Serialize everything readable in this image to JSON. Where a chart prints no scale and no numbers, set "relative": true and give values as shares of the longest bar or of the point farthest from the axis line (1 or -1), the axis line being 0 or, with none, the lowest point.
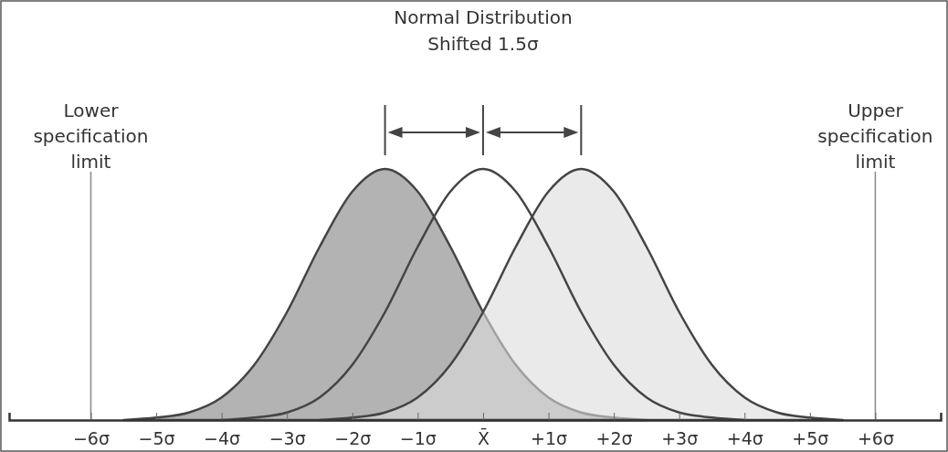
{
  "chart_data": {
    "type": "area",
    "title": "Normal Distribution",
    "subtitle": "Shifted 1.5σ",
    "relative": true,
    "series": [
      {
        "type": "area",
        "color": "#808080",
        "x": [
          -5.5,
          -5,
          -4.5,
          -4,
          -3.5,
          -3,
          -2.5,
          -2,
          -1.5,
          -1,
          -0.5,
          0,
          0.5,
          1,
          1.5,
          2,
          2.5
        ],
        "values": [
          0,
          0.01,
          0.03,
          0.09,
          0.22,
          0.43,
          0.69,
          0.91,
          1,
          0.91,
          0.69,
          0.43,
          0.22,
          0.09,
          0.03,
          0.01,
          0
        ]
      },
      {
        "color": "#dcdcdc",
        "x": [
          -2.5,
          -2,
          -1.5,
          -1,
          -0.5,
          0,
          0.5,
          1,
          1.5,
          2,
          2.5,
          3,
          3.5,
          4,
          4.5,
          5,
          5.5
        ],
        "values": [
          0,
          0.01,
          0.03,
          0.09,
          0.22,
          0.43,
          0.69,
          0.91,
          1,
          0.91,
          0.69,
          0.43,
          0.22,
          0.09,
          0.03,
          0.01,
          0
        ]
      },
      {
        "type": "line",
        "color": "#444444",
        "x": [
          -4,
          -3.5,
          -3,
          -2.5,
          -2,
          -1.5,
          -1,
          -0.5,
          0,
          0.5,
          1,
          1.5,
          2,
          2.5,
          3,
          3.5,
          4
        ],
        "values": [
          0,
          0.01,
          0.03,
          0.09,
          0.22,
          0.43,
          0.69,
          0.91,
          1,
          0.91,
          0.69,
          0.43,
          0.22,
          0.09,
          0.03,
          0.01,
          0
        ]
      }
    ],
    "xlim": [
      -7.25,
      7
    ],
    "xticks": [
      {
        "value": -6,
        "label": "−6σ"
      },
      {
        "value": -5,
        "label": "−5σ"
      },
      {
        "value": -4,
        "label": "−4σ"
      },
      {
        "value": -3,
        "label": "−3σ"
      },
      {
        "value": -2,
        "label": "−2σ"
      },
      {
        "value": -1,
        "label": "−1σ"
      },
      {
        "value": 0,
        "label": "X̄"
      },
      {
        "value": 1,
        "label": "+1σ"
      },
      {
        "value": 2,
        "label": "+2σ"
      },
      {
        "value": 3,
        "label": "+3σ"
      },
      {
        "value": 4,
        "label": "+4σ"
      },
      {
        "value": 5,
        "label": "+5σ"
      },
      {
        "value": 6,
        "label": "+6σ"
      }
    ],
    "tick_labels": "x",
    "ref_lines": [
      {
        "axis": "x",
        "value": -6,
        "label": "Lower specification limit",
        "color": "#888888"
      },
      {
        "axis": "x",
        "value": 6,
        "label": "Upper specification limit",
        "color": "#888888"
      }
    ]
  }
}
